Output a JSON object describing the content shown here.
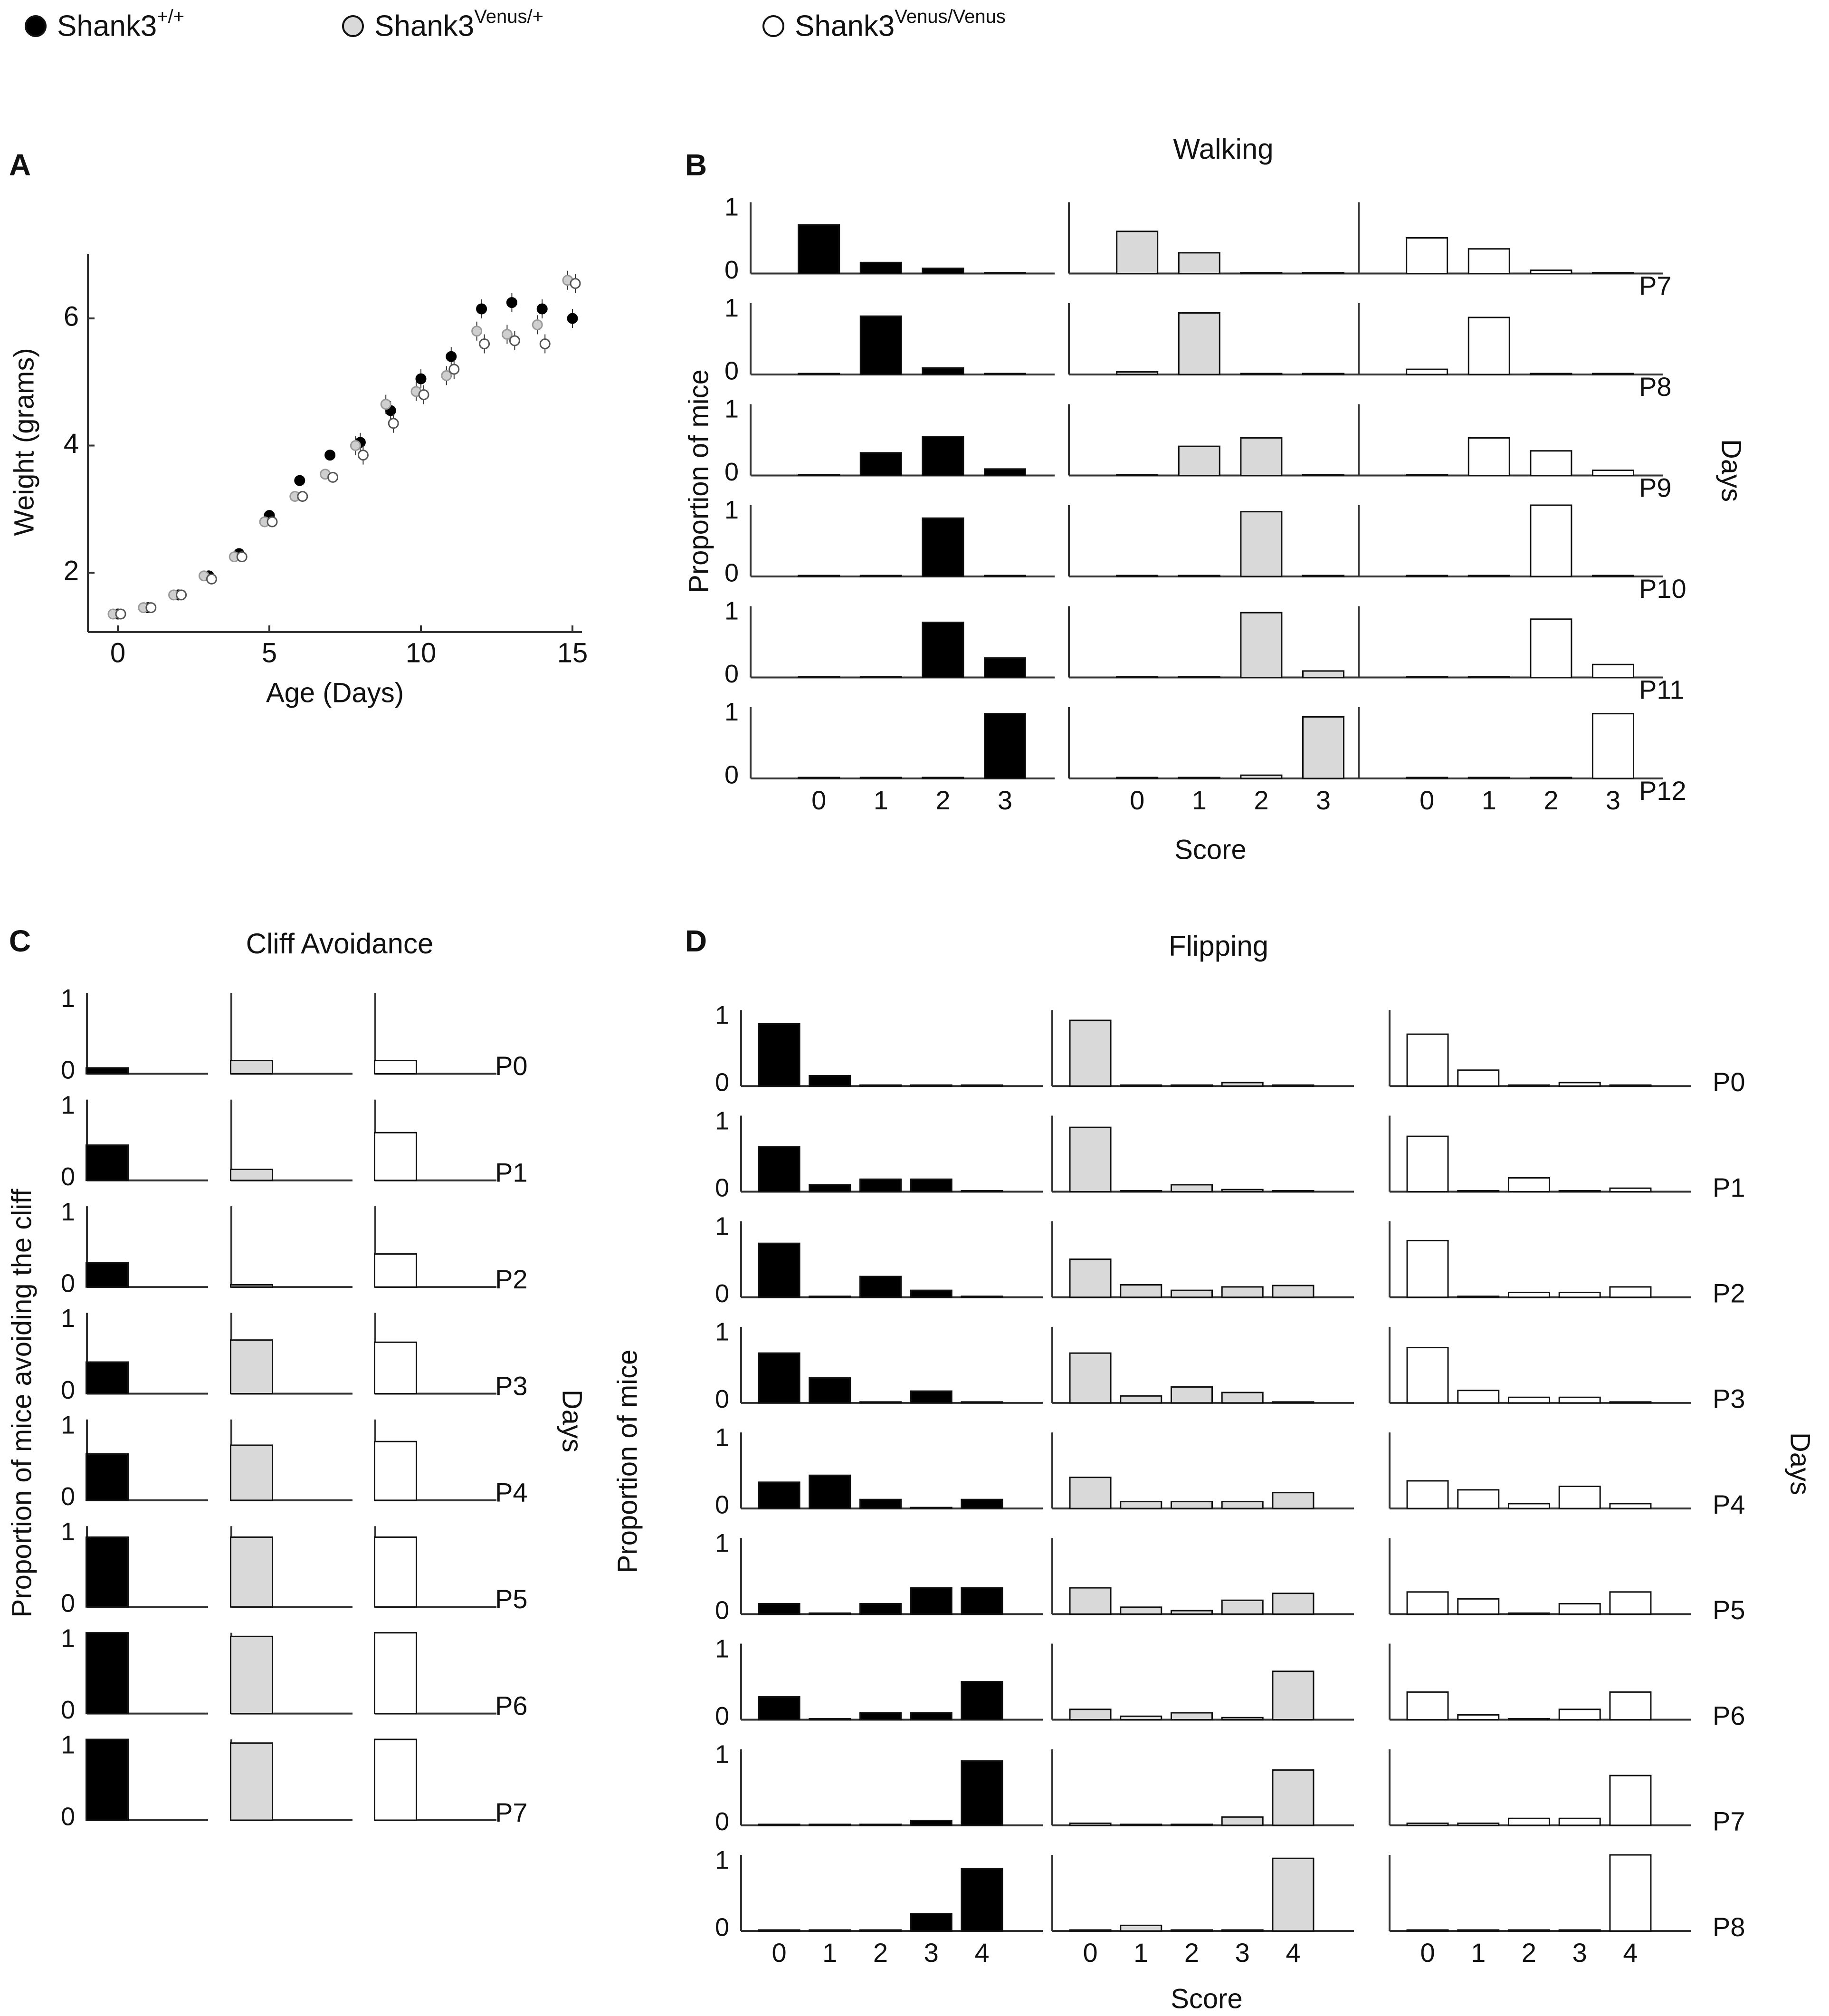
{
  "legend": [
    {
      "base": "Shank3",
      "sup": "+/+",
      "fill": "#000000"
    },
    {
      "base": "Shank3",
      "sup": "Venus/+",
      "fill": "#d9d9d9"
    },
    {
      "base": "Shank3",
      "sup": "Venus/Venus",
      "fill": "#ffffff"
    }
  ],
  "colors": {
    "wt": "#000000",
    "het": "#d9d9d9",
    "hom": "#ffffff",
    "axis": "#333333",
    "text": "#111111"
  },
  "panel_labels": {
    "a": "A",
    "b": "B",
    "c": "C",
    "d": "D"
  },
  "chart_data": [
    {
      "id": "A",
      "type": "scatter",
      "title": "",
      "xlabel": "Age (Days)",
      "ylabel": "Weight (grams)",
      "xlim": [
        -1,
        15.5
      ],
      "ylim": [
        1,
        7
      ],
      "xticks": [
        0,
        5,
        10,
        15
      ],
      "yticks": [
        2,
        4,
        6
      ],
      "x": [
        0,
        1,
        2,
        3,
        4,
        5,
        6,
        7,
        8,
        9,
        10,
        11,
        12,
        13,
        14,
        15
      ],
      "series": [
        {
          "name": "Shank3+/+",
          "values": [
            1.35,
            1.45,
            1.65,
            1.95,
            2.3,
            2.9,
            3.45,
            3.85,
            4.05,
            4.55,
            5.05,
            5.4,
            6.15,
            6.25,
            6.15,
            6.0
          ]
        },
        {
          "name": "Shank3Venus/+",
          "values": [
            1.35,
            1.45,
            1.65,
            1.95,
            2.25,
            2.8,
            3.2,
            3.55,
            4.0,
            4.65,
            4.85,
            5.1,
            5.8,
            5.75,
            5.9,
            6.6
          ]
        },
        {
          "name": "Shank3Venus/Venus",
          "values": [
            1.35,
            1.45,
            1.65,
            1.9,
            2.25,
            2.8,
            3.2,
            3.5,
            3.85,
            4.35,
            4.8,
            5.2,
            5.6,
            5.65,
            5.6,
            6.55
          ]
        }
      ]
    },
    {
      "id": "B",
      "type": "bar",
      "title": "Walking",
      "xlabel": "Score",
      "ylabel": "Proportion of mice",
      "row_axis_label": "Days",
      "categories": [
        "0",
        "1",
        "2",
        "3"
      ],
      "yticks": [
        "1",
        "0"
      ],
      "genotypes": [
        "Shank3+/+",
        "Shank3Venus/+",
        "Shank3Venus/Venus"
      ],
      "rows": [
        {
          "day": "P7",
          "values": [
            [
              0.75,
              0.17,
              0.08,
              0
            ],
            [
              0.65,
              0.32,
              0,
              0
            ],
            [
              0.55,
              0.38,
              0.05,
              0
            ]
          ]
        },
        {
          "day": "P8",
          "values": [
            [
              0,
              0.9,
              0.1,
              0
            ],
            [
              0.04,
              0.95,
              0,
              0
            ],
            [
              0.08,
              0.88,
              0,
              0
            ]
          ]
        },
        {
          "day": "P9",
          "values": [
            [
              0,
              0.35,
              0.6,
              0.1
            ],
            [
              0,
              0.45,
              0.58,
              0
            ],
            [
              0,
              0.58,
              0.38,
              0.08
            ]
          ]
        },
        {
          "day": "P10",
          "values": [
            [
              0,
              0,
              0.9,
              0
            ],
            [
              0,
              0,
              1.0,
              0
            ],
            [
              0,
              0,
              1.1,
              0
            ]
          ]
        },
        {
          "day": "P11",
          "values": [
            [
              0,
              0,
              0.85,
              0.3
            ],
            [
              0,
              0,
              1.0,
              0.1
            ],
            [
              0,
              0,
              0.9,
              0.2
            ]
          ]
        },
        {
          "day": "P12",
          "values": [
            [
              0,
              0,
              0,
              1.0
            ],
            [
              0,
              0,
              0.05,
              0.95
            ],
            [
              0,
              0,
              0,
              1.0
            ]
          ]
        }
      ]
    },
    {
      "id": "C",
      "type": "bar",
      "title": "Cliff Avoidance",
      "xlabel": "",
      "ylabel": "Proportion of mice avoiding the cliff",
      "row_axis_label": "Days",
      "categories": [
        ""
      ],
      "yticks": [
        "1",
        "0"
      ],
      "genotypes": [
        "Shank3+/+",
        "Shank3Venus/+",
        "Shank3Venus/Venus"
      ],
      "rows": [
        {
          "day": "P0",
          "values": [
            [
              0.08
            ],
            [
              0.18
            ],
            [
              0.18
            ]
          ]
        },
        {
          "day": "P1",
          "values": [
            [
              0.48
            ],
            [
              0.15
            ],
            [
              0.65
            ]
          ]
        },
        {
          "day": "P2",
          "values": [
            [
              0.33
            ],
            [
              0.03
            ],
            [
              0.45
            ]
          ]
        },
        {
          "day": "P3",
          "values": [
            [
              0.43
            ],
            [
              0.73
            ],
            [
              0.7
            ]
          ]
        },
        {
          "day": "P4",
          "values": [
            [
              0.63
            ],
            [
              0.75
            ],
            [
              0.8
            ]
          ]
        },
        {
          "day": "P5",
          "values": [
            [
              0.95
            ],
            [
              0.95
            ],
            [
              0.95
            ]
          ]
        },
        {
          "day": "P6",
          "values": [
            [
              1.1
            ],
            [
              1.05
            ],
            [
              1.1
            ]
          ]
        },
        {
          "day": "P7",
          "values": [
            [
              1.1
            ],
            [
              1.05
            ],
            [
              1.1
            ]
          ]
        }
      ]
    },
    {
      "id": "D",
      "type": "bar",
      "title": "Flipping",
      "xlabel": "Score",
      "ylabel": "Proportion of mice",
      "row_axis_label": "Days",
      "categories": [
        "0",
        "1",
        "2",
        "3",
        "4"
      ],
      "yticks": [
        "1",
        "0"
      ],
      "genotypes": [
        "Shank3+/+",
        "Shank3Venus/+",
        "Shank3Venus/Venus"
      ],
      "rows": [
        {
          "day": "P0",
          "values": [
            [
              0.9,
              0.15,
              0,
              0,
              0
            ],
            [
              0.95,
              0,
              0,
              0.05,
              0
            ],
            [
              0.75,
              0.23,
              0,
              0.05,
              0
            ]
          ]
        },
        {
          "day": "P1",
          "values": [
            [
              0.65,
              0.1,
              0.18,
              0.18,
              0
            ],
            [
              0.93,
              0,
              0.1,
              0.03,
              0
            ],
            [
              0.8,
              0,
              0.2,
              0,
              0.05
            ]
          ]
        },
        {
          "day": "P2",
          "values": [
            [
              0.78,
              0,
              0.3,
              0.1,
              0
            ],
            [
              0.55,
              0.18,
              0.1,
              0.15,
              0.17
            ],
            [
              0.82,
              0,
              0.07,
              0.07,
              0.15
            ]
          ]
        },
        {
          "day": "P3",
          "values": [
            [
              0.72,
              0.36,
              0,
              0.17,
              0
            ],
            [
              0.72,
              0.1,
              0.23,
              0.15,
              0
            ],
            [
              0.8,
              0.18,
              0.08,
              0.08,
              0
            ]
          ]
        },
        {
          "day": "P4",
          "values": [
            [
              0.38,
              0.48,
              0.13,
              0,
              0.13
            ],
            [
              0.45,
              0.1,
              0.1,
              0.1,
              0.23
            ],
            [
              0.4,
              0.27,
              0.07,
              0.32,
              0.07
            ]
          ]
        },
        {
          "day": "P5",
          "values": [
            [
              0.15,
              0,
              0.15,
              0.38,
              0.38
            ],
            [
              0.38,
              0.1,
              0.05,
              0.2,
              0.3
            ],
            [
              0.32,
              0.22,
              0,
              0.15,
              0.32
            ]
          ]
        },
        {
          "day": "P6",
          "values": [
            [
              0.33,
              0,
              0.1,
              0.1,
              0.55
            ],
            [
              0.15,
              0.05,
              0.1,
              0.03,
              0.7
            ],
            [
              0.4,
              0.07,
              0,
              0.15,
              0.4
            ]
          ]
        },
        {
          "day": "P7",
          "values": [
            [
              0,
              0,
              0,
              0.07,
              0.93
            ],
            [
              0.03,
              0,
              0,
              0.12,
              0.8
            ],
            [
              0.03,
              0.03,
              0.1,
              0.1,
              0.72
            ]
          ]
        },
        {
          "day": "P8",
          "values": [
            [
              0,
              0,
              0,
              0.25,
              0.9
            ],
            [
              0,
              0.08,
              0,
              0,
              1.05
            ],
            [
              0,
              0,
              0,
              0,
              1.1
            ]
          ]
        }
      ]
    }
  ]
}
